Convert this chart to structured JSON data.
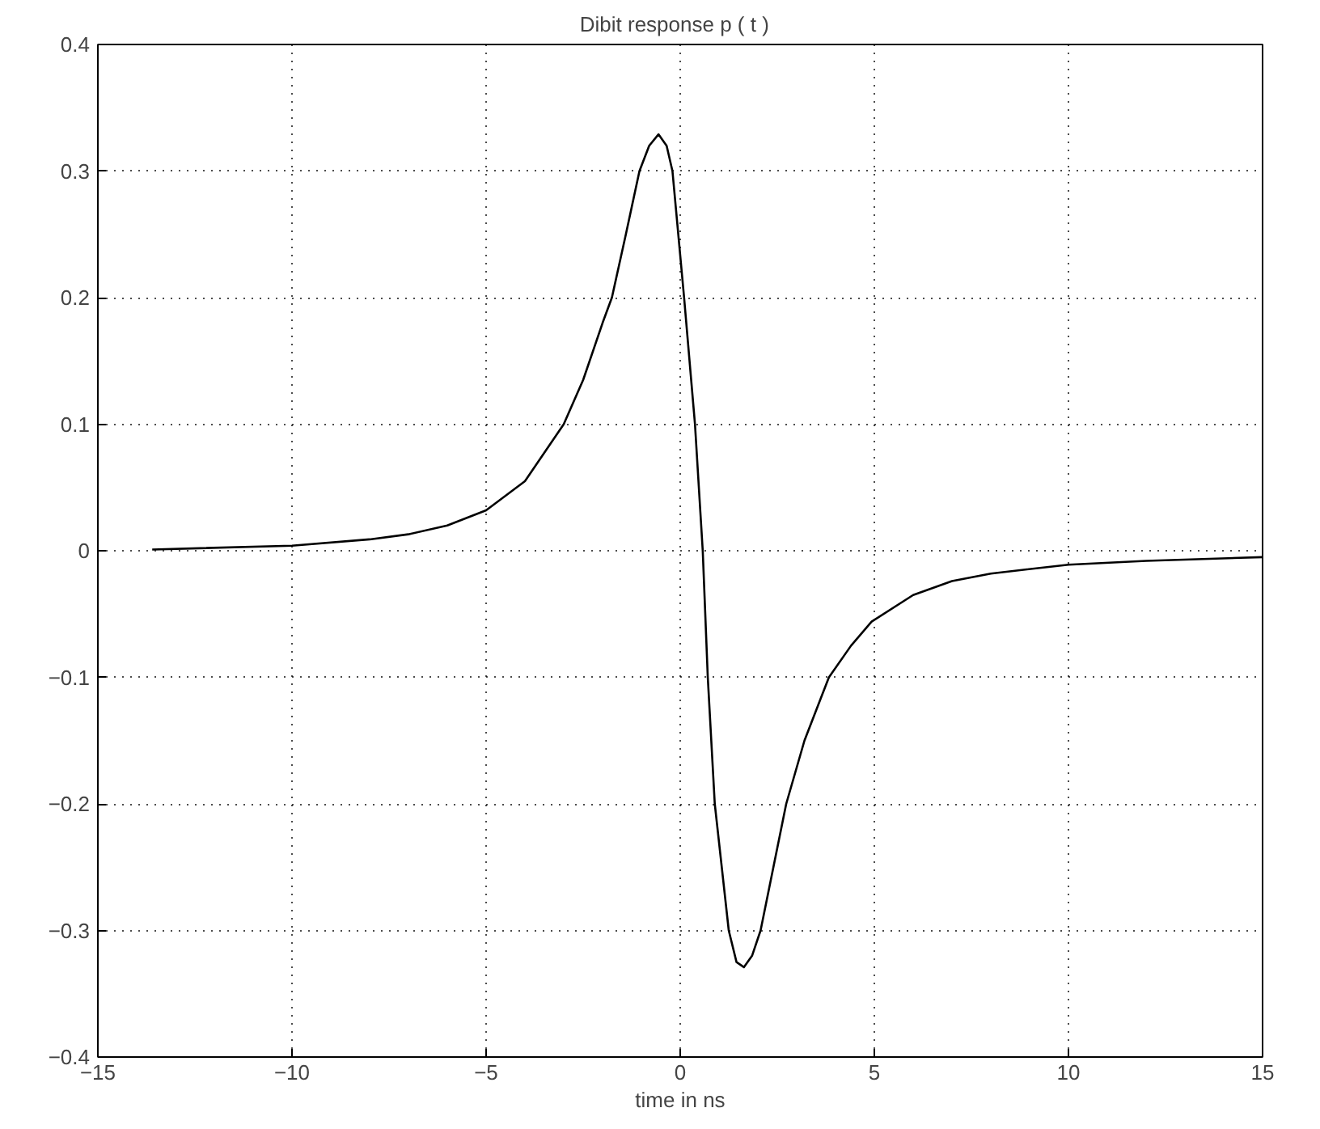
{
  "chart_data": {
    "type": "line",
    "title": "Dibit response   p ( t )",
    "xlabel": "time in ns",
    "x": [
      -13.6,
      -10,
      -8,
      -7,
      -6,
      -5,
      -4,
      -3,
      -2.5,
      -2,
      -1.76,
      -1.4,
      -1.05,
      -0.8,
      -0.56,
      -0.35,
      -0.2,
      0.1,
      0.38,
      0.58,
      0.71,
      0.89,
      1.25,
      1.45,
      1.64,
      1.85,
      2.07,
      2.4,
      2.73,
      3.2,
      3.83,
      4.4,
      4.93,
      6,
      7,
      8,
      10,
      12,
      15
    ],
    "series": [
      {
        "color": "#000000",
        "values": [
          0.001,
          0.004,
          0.009,
          0.013,
          0.02,
          0.032,
          0.055,
          0.1,
          0.135,
          0.18,
          0.2,
          0.25,
          0.3,
          0.32,
          0.329,
          0.32,
          0.3,
          0.2,
          0.1,
          0,
          -0.1,
          -0.2,
          -0.3,
          -0.325,
          -0.329,
          -0.32,
          -0.3,
          -0.25,
          -0.2,
          -0.15,
          -0.1,
          -0.075,
          -0.056,
          -0.035,
          -0.024,
          -0.018,
          -0.011,
          -0.008,
          -0.005
        ]
      }
    ],
    "xlim": [
      -15,
      15
    ],
    "ylim": [
      -0.4,
      0.4
    ],
    "xticks": [
      {
        "value": -15,
        "label": "−15"
      },
      {
        "value": -10,
        "label": "−10"
      },
      {
        "value": -5,
        "label": "−5"
      },
      0,
      5,
      10,
      15
    ],
    "yticks": [
      {
        "value": -0.4,
        "label": "−0.4"
      },
      {
        "value": -0.3,
        "label": "−0.3"
      },
      {
        "value": -0.2,
        "label": "−0.2"
      },
      {
        "value": -0.1,
        "label": "−0.1"
      },
      0,
      0.1,
      0.2,
      0.3,
      0.4
    ],
    "grid": true,
    "line_style": "solid",
    "marker": "none"
  }
}
